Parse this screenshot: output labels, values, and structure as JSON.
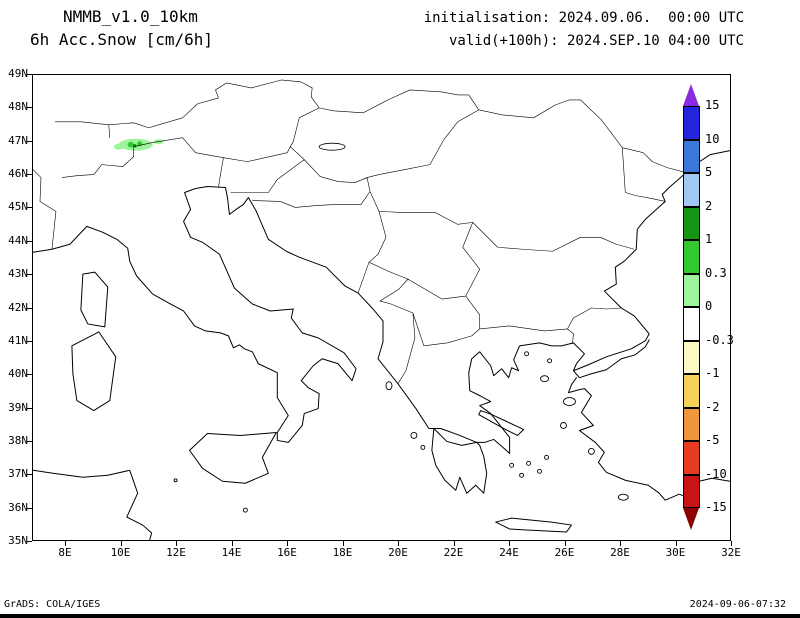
{
  "header": {
    "model": "NMMB_v1.0_10km",
    "field": "6h Acc.Snow [cm/6h]",
    "init_line": "initialisation: 2024.09.06.  00:00 UTC",
    "valid_line": "valid(+100h): 2024.SEP.10 04:00 UTC"
  },
  "map": {
    "lat_labels": [
      "49N",
      "48N",
      "47N",
      "46N",
      "45N",
      "44N",
      "43N",
      "42N",
      "41N",
      "40N",
      "39N",
      "38N",
      "37N",
      "36N",
      "35N"
    ],
    "lon_labels": [
      "8E",
      "10E",
      "12E",
      "14E",
      "16E",
      "18E",
      "20E",
      "22E",
      "24E",
      "26E",
      "28E",
      "30E",
      "32E"
    ]
  },
  "colorbar": {
    "labels": [
      "15",
      "10",
      "5",
      "2",
      "1",
      "0.3",
      "0",
      "-0.3",
      "-1",
      "-2",
      "-5",
      "-10",
      "-15"
    ],
    "top_arrow_color": "#8a2be2",
    "bottom_arrow_color": "#8b0000",
    "segment_colors": [
      "#2424dd",
      "#3c78dc",
      "#a0c8f0",
      "#149614",
      "#32c832",
      "#9cf59c",
      "#ffffff",
      "#fdf9c4",
      "#f7d258",
      "#f0963c",
      "#e43c1e",
      "#c81414"
    ]
  },
  "chart_data": {
    "type": "map",
    "title": "6h Acc.Snow [cm/6h]",
    "lon_range_deg_east": [
      6.8,
      32.0
    ],
    "lat_range_deg_north": [
      35,
      49
    ],
    "colorbar_levels": [
      15,
      10,
      5,
      2,
      1,
      0.3,
      0,
      -0.3,
      -1,
      -2,
      -5,
      -10,
      -15
    ],
    "snow_patches": [
      {
        "lon": 10.5,
        "lat": 47.0,
        "value_cm": "0.3 to 2",
        "note": "light green patch with darker green cores over the Alps near 47N 10-11E"
      }
    ]
  },
  "footer": {
    "left": "GrADS: COLA/IGES",
    "right": "2024-09-06-07:32"
  }
}
